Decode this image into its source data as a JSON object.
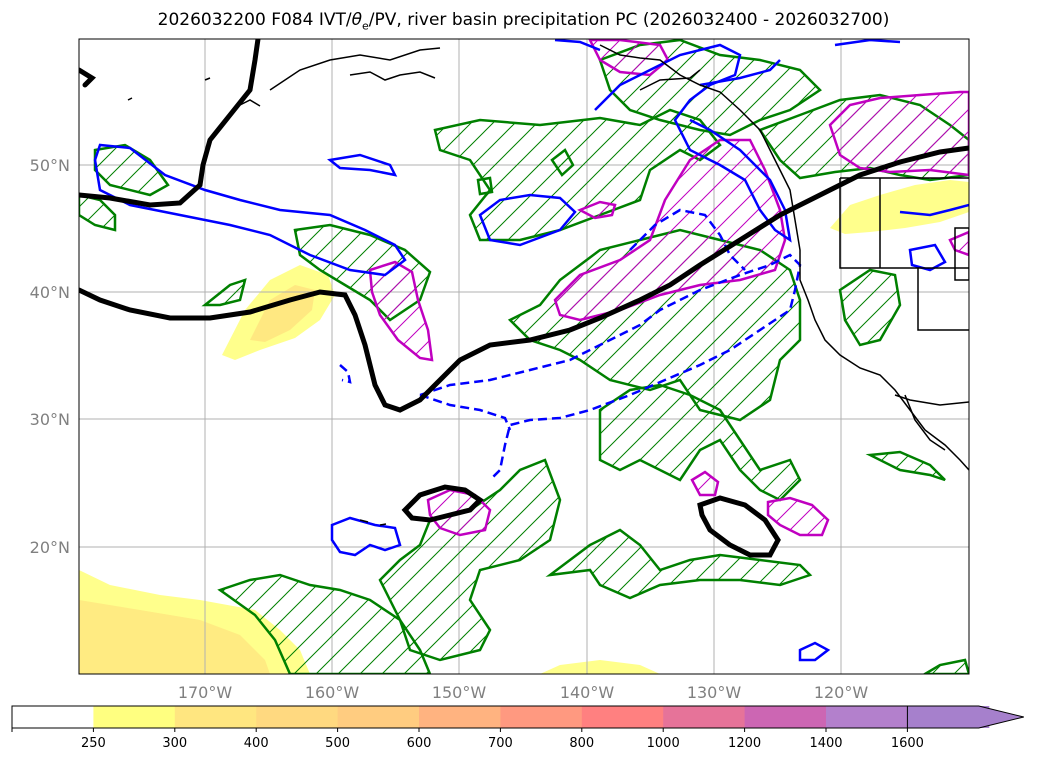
{
  "title": {
    "prefix": "2026032200 F084 IVT/",
    "theta": "θ",
    "theta_sub": "e",
    "suffix": "/PV, river basin precipitation PC (2026032400 - 2026032700)"
  },
  "axes": {
    "lat_labels": [
      "50°N",
      "40°N",
      "30°N",
      "20°N"
    ],
    "lon_labels": [
      "170°W",
      "160°W",
      "150°W",
      "140°W",
      "130°W",
      "120°W"
    ]
  },
  "colorbar": {
    "tick_labels": [
      "250",
      "300",
      "400",
      "500",
      "600",
      "700",
      "800",
      "1000",
      "1200",
      "1400",
      "1600"
    ],
    "colors": [
      "#ffffff",
      "#ffff80",
      "#ffe680",
      "#ffd980",
      "#ffcc80",
      "#ffb380",
      "#ff9980",
      "#ff8080",
      "#e67399",
      "#cc66b3",
      "#b380cc",
      "#a680cc"
    ]
  },
  "colors": {
    "precip_contour": "#008000",
    "pv_contour": "#0000ff",
    "theta_contour": "#c000c0",
    "ivt_contour": "#000000",
    "grid": "#b0b0b0",
    "coast": "#000000"
  }
}
